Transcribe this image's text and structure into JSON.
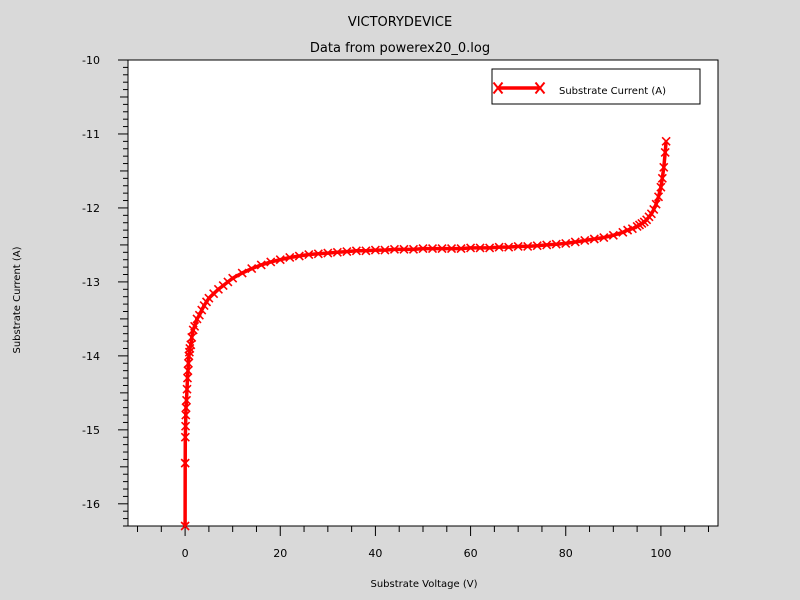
{
  "chart_data": {
    "type": "line",
    "title": "VICTORYDEVICE",
    "subtitle": "Data from powerex20_0.log",
    "xlabel": "Substrate Voltage (V)",
    "ylabel": "Substrate Current (A)",
    "xlim": [
      -12,
      112
    ],
    "ylim": [
      -16.3,
      -10
    ],
    "xticks": [
      0,
      20,
      40,
      60,
      80,
      100
    ],
    "yticks": [
      -10,
      -11,
      -12,
      -13,
      -14,
      -15,
      -16
    ],
    "xtick_labels": [
      "0",
      "20",
      "40",
      "60",
      "80",
      "100"
    ],
    "ytick_labels": [
      "-10",
      "-11",
      "-12",
      "-13",
      "-14",
      "-15",
      "-16"
    ],
    "legend_position": "top-right",
    "grid": false,
    "series": [
      {
        "name": "Substrate Current (A)",
        "color": "#ff0000",
        "marker": "x",
        "x": [
          0.0,
          0.02,
          0.05,
          0.1,
          0.15,
          0.2,
          0.3,
          0.4,
          0.5,
          0.6,
          0.7,
          0.8,
          0.9,
          1.0,
          1.2,
          1.4,
          1.7,
          2.0,
          2.5,
          3,
          3.5,
          4,
          4.5,
          5,
          6,
          7,
          8,
          9,
          10,
          12,
          14,
          16,
          18,
          20,
          22,
          24,
          26,
          28,
          30,
          32,
          34,
          36,
          38,
          40,
          42,
          44,
          46,
          48,
          50,
          52,
          54,
          56,
          58,
          60,
          62,
          64,
          66,
          68,
          70,
          72,
          74,
          76,
          78,
          80,
          82,
          84,
          86,
          88,
          90,
          92,
          93,
          94,
          95,
          95.5,
          96,
          96.5,
          97,
          97.5,
          98,
          98.5,
          99,
          99.5,
          100,
          100.3,
          100.6,
          100.9,
          101.1
        ],
        "y": [
          -16.3,
          -15.45,
          -15.1,
          -14.95,
          -14.8,
          -14.7,
          -14.6,
          -14.45,
          -14.3,
          -14.2,
          -14.1,
          -14.0,
          -13.95,
          -13.9,
          -13.85,
          -13.75,
          -13.65,
          -13.6,
          -13.5,
          -13.45,
          -13.38,
          -13.32,
          -13.27,
          -13.22,
          -13.16,
          -13.1,
          -13.05,
          -13.0,
          -12.95,
          -12.88,
          -12.82,
          -12.77,
          -12.73,
          -12.7,
          -12.67,
          -12.65,
          -12.63,
          -12.62,
          -12.61,
          -12.6,
          -12.59,
          -12.58,
          -12.58,
          -12.57,
          -12.57,
          -12.56,
          -12.56,
          -12.56,
          -12.55,
          -12.55,
          -12.55,
          -12.55,
          -12.55,
          -12.54,
          -12.54,
          -12.54,
          -12.53,
          -12.53,
          -12.52,
          -12.52,
          -12.51,
          -12.5,
          -12.49,
          -12.48,
          -12.46,
          -12.44,
          -12.42,
          -12.4,
          -12.37,
          -12.33,
          -12.3,
          -12.28,
          -12.25,
          -12.23,
          -12.21,
          -12.19,
          -12.16,
          -12.12,
          -12.08,
          -12.02,
          -11.95,
          -11.85,
          -11.72,
          -11.6,
          -11.45,
          -11.25,
          -11.1
        ]
      }
    ]
  }
}
